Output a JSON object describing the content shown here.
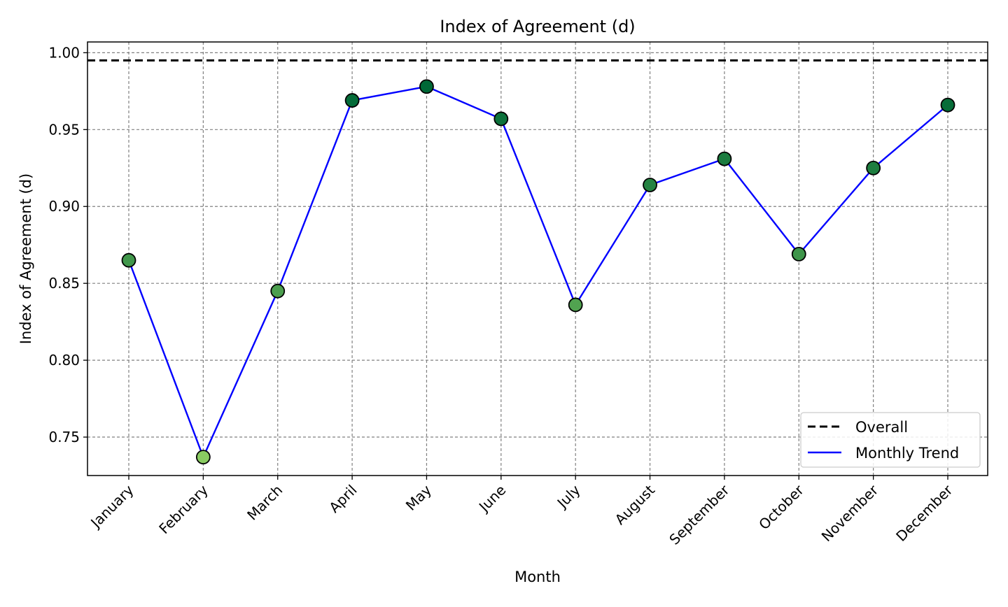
{
  "chart_data": {
    "type": "line",
    "title": "Index of Agreement (d)",
    "xlabel": "Month",
    "ylabel": "Index of Agreement (d)",
    "categories": [
      "January",
      "February",
      "March",
      "April",
      "May",
      "June",
      "July",
      "August",
      "September",
      "October",
      "November",
      "December"
    ],
    "series": [
      {
        "name": "Monthly Trend",
        "values": [
          0.865,
          0.737,
          0.845,
          0.969,
          0.978,
          0.957,
          0.836,
          0.914,
          0.931,
          0.869,
          0.925,
          0.966
        ],
        "line_color": "#0000ff",
        "marker": "circle",
        "marker_edge_color": "#000000",
        "marker_fill": "colored by value (light green to dark green)"
      }
    ],
    "reference_lines": [
      {
        "name": "Overall",
        "value": 0.995,
        "style": "dashed",
        "color": "#000000"
      }
    ],
    "ylim": [
      0.725,
      1.007
    ],
    "yticks": [
      0.75,
      0.8,
      0.85,
      0.9,
      0.95,
      1.0
    ],
    "ytick_labels": [
      "0.75",
      "0.80",
      "0.85",
      "0.90",
      "0.95",
      "1.00"
    ],
    "grid": true,
    "grid_style": "dashed gray",
    "legend": {
      "placement": "lower-right",
      "entries": [
        "Overall",
        "Monthly Trend"
      ]
    },
    "xtick_rotation": 45
  }
}
